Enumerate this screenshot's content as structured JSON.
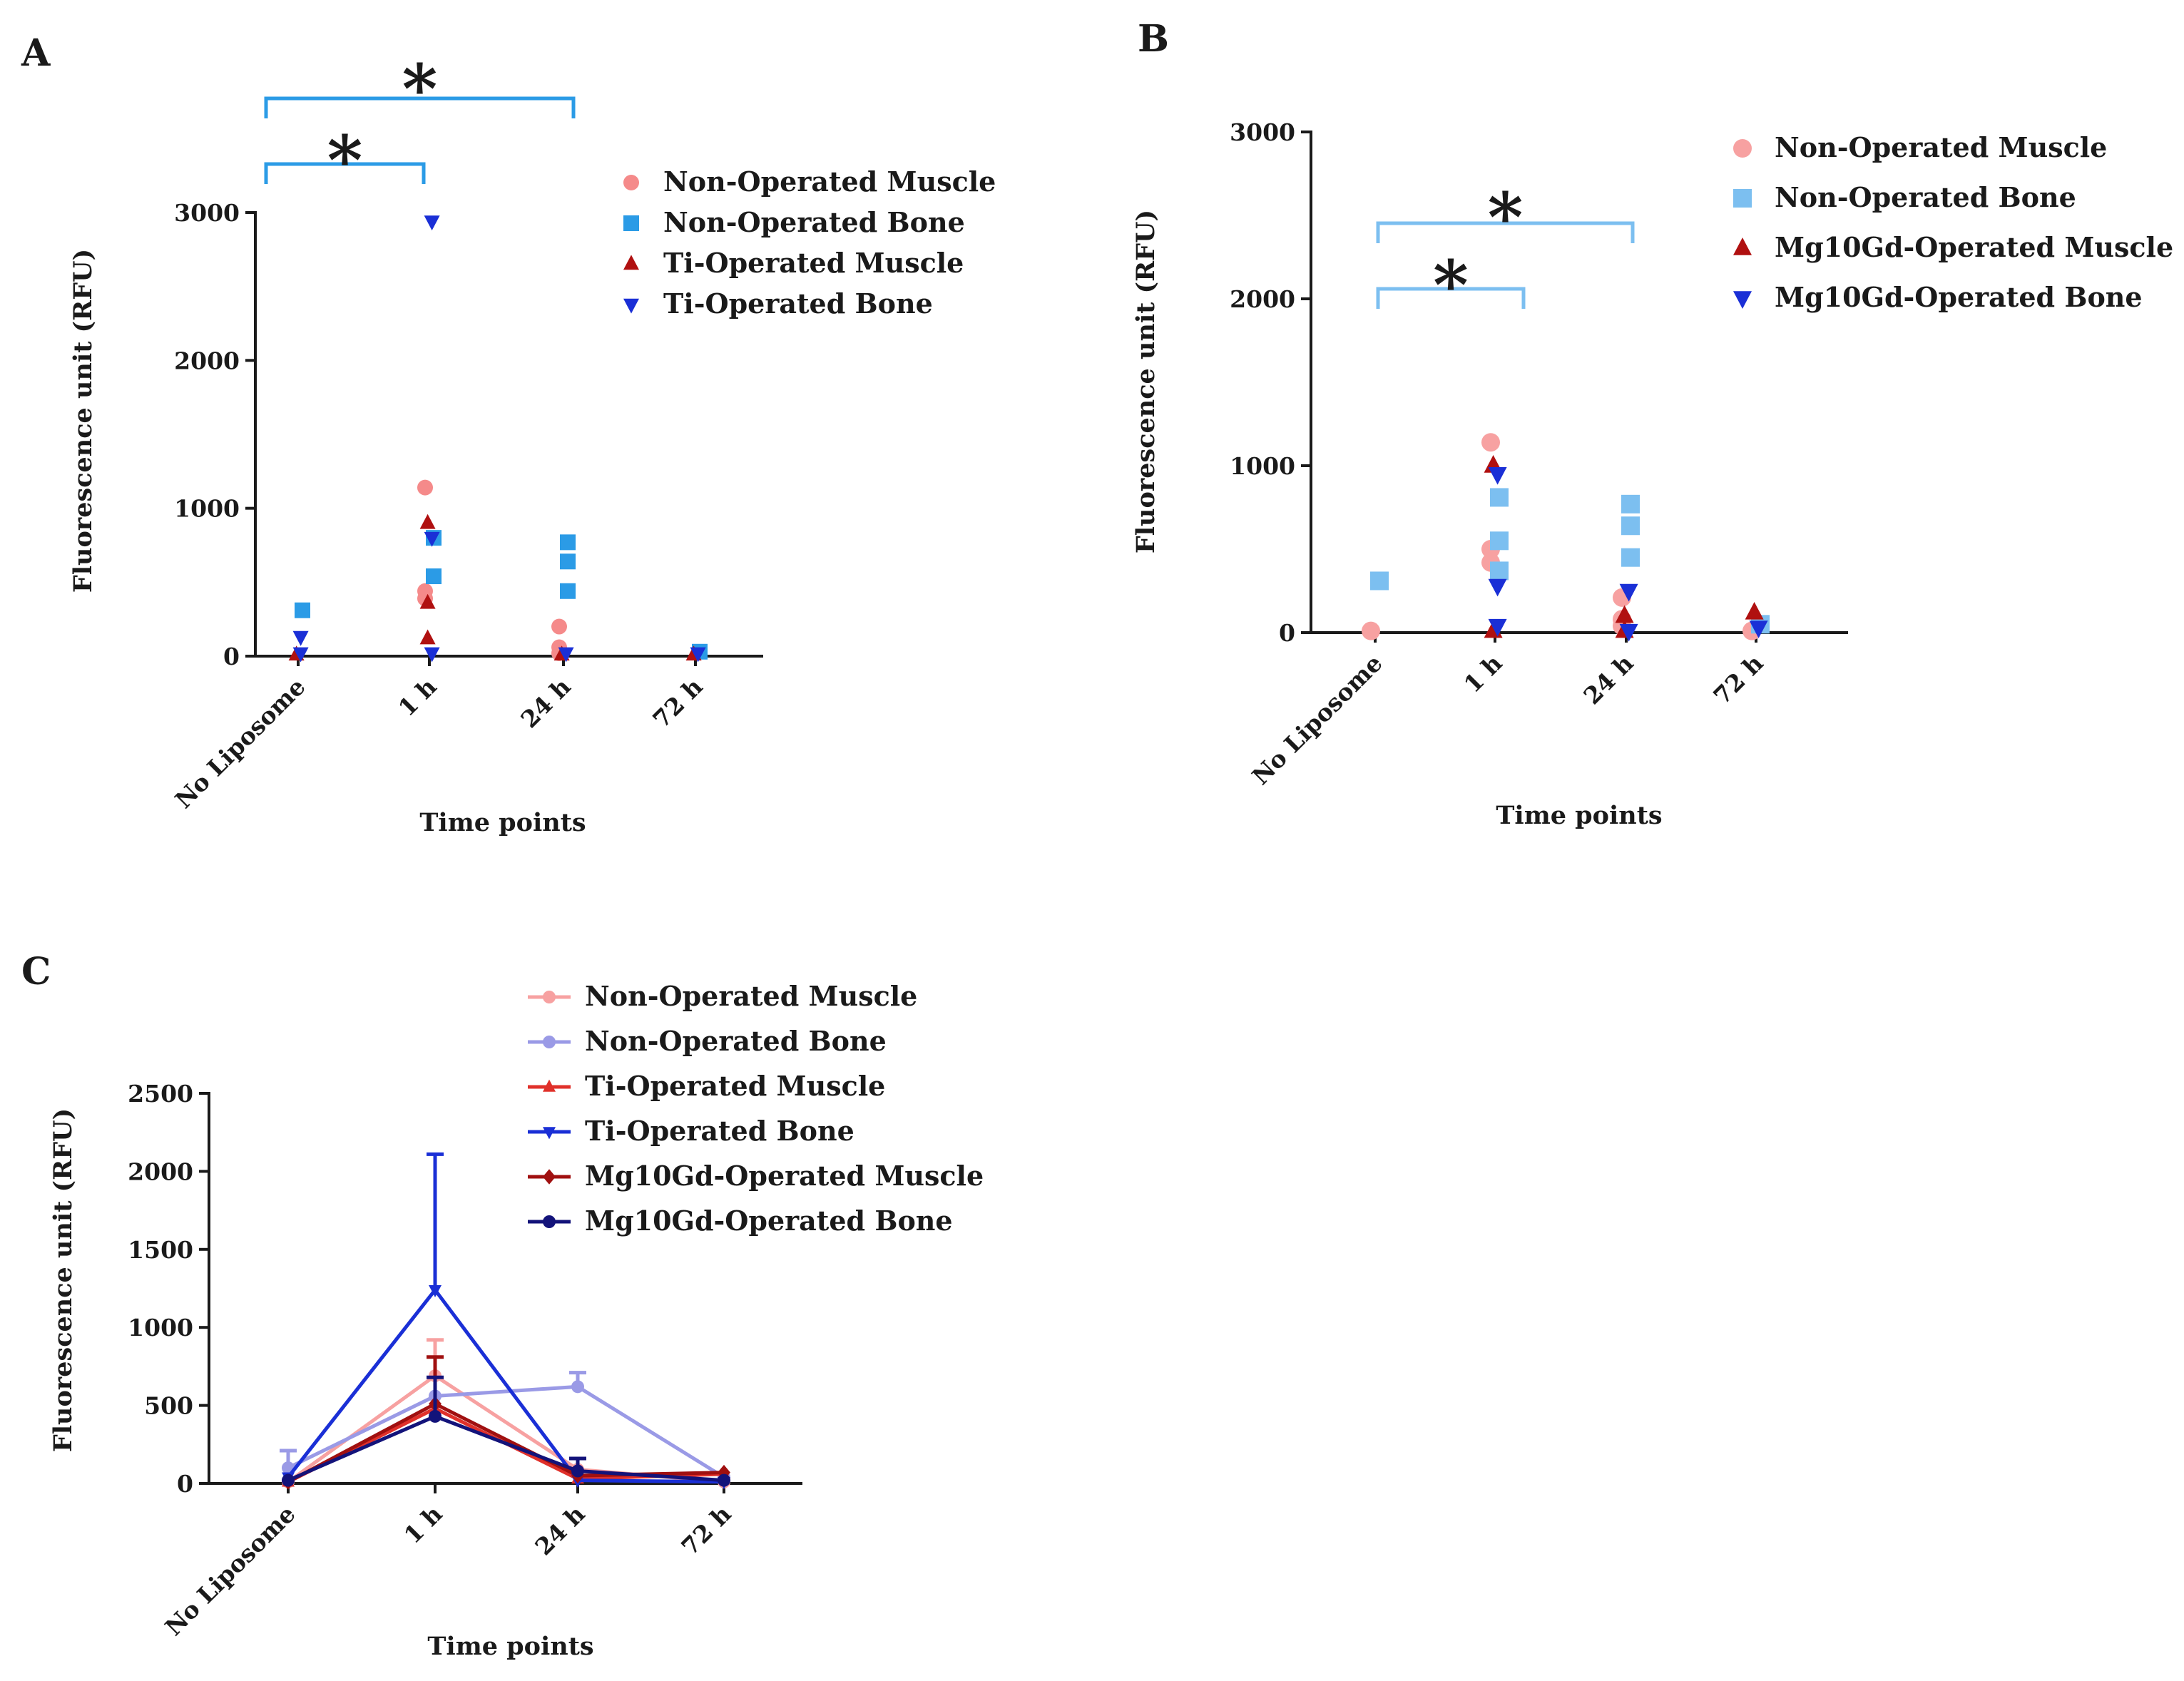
{
  "chart_data": [
    {
      "panel": "A",
      "type": "scatter",
      "xlabel": "Time points",
      "ylabel": "Fluorescence unit (RFU)",
      "categories": [
        "No Liposome",
        "1 h",
        "24 h",
        "72 h"
      ],
      "ylim": [
        0,
        3000
      ],
      "yticks": [
        0,
        1000,
        2000,
        3000
      ],
      "legend_position": "top-right",
      "series": [
        {
          "name": "Non-Operated Muscle",
          "marker": "circle",
          "color": "#f58a8a",
          "points": [
            [
              1,
              1140
            ],
            [
              1,
              440
            ],
            [
              1,
              390
            ],
            [
              2,
              200
            ],
            [
              2,
              60
            ],
            [
              2,
              20
            ]
          ]
        },
        {
          "name": "Non-Operated Bone",
          "marker": "square",
          "color": "#2b9be6",
          "points": [
            [
              0,
              310
            ],
            [
              1,
              800
            ],
            [
              1,
              540
            ],
            [
              2,
              770
            ],
            [
              2,
              640
            ],
            [
              2,
              440
            ],
            [
              3,
              30
            ]
          ]
        },
        {
          "name": "Ti-Operated Muscle",
          "marker": "triangle-up",
          "color": "#b01010",
          "points": [
            [
              0,
              10
            ],
            [
              1,
              900
            ],
            [
              1,
              360
            ],
            [
              1,
              120
            ],
            [
              2,
              10
            ],
            [
              3,
              10
            ]
          ]
        },
        {
          "name": "Ti-Operated Bone",
          "marker": "triangle-down",
          "color": "#1a2fd6",
          "points": [
            [
              0,
              130
            ],
            [
              0,
              20
            ],
            [
              1,
              2940
            ],
            [
              1,
              800
            ],
            [
              1,
              20
            ],
            [
              2,
              20
            ],
            [
              3,
              20
            ]
          ]
        }
      ],
      "significance": [
        {
          "from": "No Liposome",
          "to": "1 h",
          "label": "*"
        },
        {
          "from": "No Liposome",
          "to": "24 h",
          "label": "*"
        }
      ]
    },
    {
      "panel": "B",
      "type": "scatter",
      "xlabel": "Time points",
      "ylabel": "Fluorescence unit (RFU)",
      "categories": [
        "No Liposome",
        "1 h",
        "24 h",
        "72 h"
      ],
      "ylim": [
        0,
        3000
      ],
      "yticks": [
        0,
        1000,
        2000,
        3000
      ],
      "legend_position": "top-right",
      "series": [
        {
          "name": "Non-Operated Muscle",
          "marker": "circle",
          "color": "#f7a1a1",
          "points": [
            [
              0,
              10
            ],
            [
              1,
              1140
            ],
            [
              1,
              500
            ],
            [
              1,
              420
            ],
            [
              2,
              210
            ],
            [
              2,
              80
            ],
            [
              2,
              40
            ],
            [
              3,
              10
            ]
          ]
        },
        {
          "name": "Non-Operated Bone",
          "marker": "square",
          "color": "#7cbff0",
          "points": [
            [
              0,
              310
            ],
            [
              1,
              810
            ],
            [
              1,
              550
            ],
            [
              1,
              370
            ],
            [
              2,
              770
            ],
            [
              2,
              640
            ],
            [
              2,
              450
            ],
            [
              3,
              50
            ]
          ]
        },
        {
          "name": "Mg10Gd-Operated Muscle",
          "marker": "triangle-up",
          "color": "#b01010",
          "points": [
            [
              1,
              1000
            ],
            [
              1,
              10
            ],
            [
              2,
              100
            ],
            [
              2,
              10
            ],
            [
              3,
              120
            ]
          ]
        },
        {
          "name": "Mg10Gd-Operated Bone",
          "marker": "triangle-down",
          "color": "#1a2fd6",
          "points": [
            [
              1,
              950
            ],
            [
              1,
              280
            ],
            [
              1,
              40
            ],
            [
              2,
              250
            ],
            [
              2,
              10
            ],
            [
              3,
              30
            ]
          ]
        }
      ],
      "significance": [
        {
          "from": "No Liposome",
          "to": "1 h",
          "label": "*"
        },
        {
          "from": "No Liposome",
          "to": "24 h",
          "label": "*"
        }
      ]
    },
    {
      "panel": "C",
      "type": "line",
      "xlabel": "Time points",
      "ylabel": "Fluorescence unit (RFU)",
      "categories": [
        "No Liposome",
        "1 h",
        "24 h",
        "72 h"
      ],
      "ylim": [
        0,
        2500
      ],
      "yticks": [
        0,
        500,
        1000,
        1500,
        2000,
        2500
      ],
      "legend_position": "top",
      "series": [
        {
          "name": "Non-Operated Muscle",
          "marker": "dot",
          "color": "#f7a1a1",
          "values": [
            10,
            690,
            90,
            10
          ],
          "errors": [
            0,
            230,
            0,
            0
          ]
        },
        {
          "name": "Non-Operated Bone",
          "marker": "dot",
          "color": "#9a9ae6",
          "values": [
            100,
            560,
            620,
            40
          ],
          "errors": [
            110,
            0,
            90,
            0
          ]
        },
        {
          "name": "Ti-Operated Muscle",
          "marker": "triangle-up",
          "color": "#e0302a",
          "values": [
            10,
            480,
            30,
            60
          ],
          "errors": [
            0,
            0,
            0,
            0
          ]
        },
        {
          "name": "Ti-Operated Bone",
          "marker": "triangle-down",
          "color": "#1a2fd6",
          "values": [
            40,
            1240,
            20,
            10
          ],
          "errors": [
            0,
            870,
            0,
            0
          ]
        },
        {
          "name": "Mg10Gd-Operated Muscle",
          "marker": "diamond",
          "color": "#a01010",
          "values": [
            10,
            510,
            50,
            70
          ],
          "errors": [
            0,
            300,
            0,
            0
          ]
        },
        {
          "name": "Mg10Gd-Operated Bone",
          "marker": "dot",
          "color": "#13137a",
          "values": [
            20,
            430,
            80,
            20
          ],
          "errors": [
            0,
            250,
            80,
            0
          ]
        }
      ]
    }
  ]
}
